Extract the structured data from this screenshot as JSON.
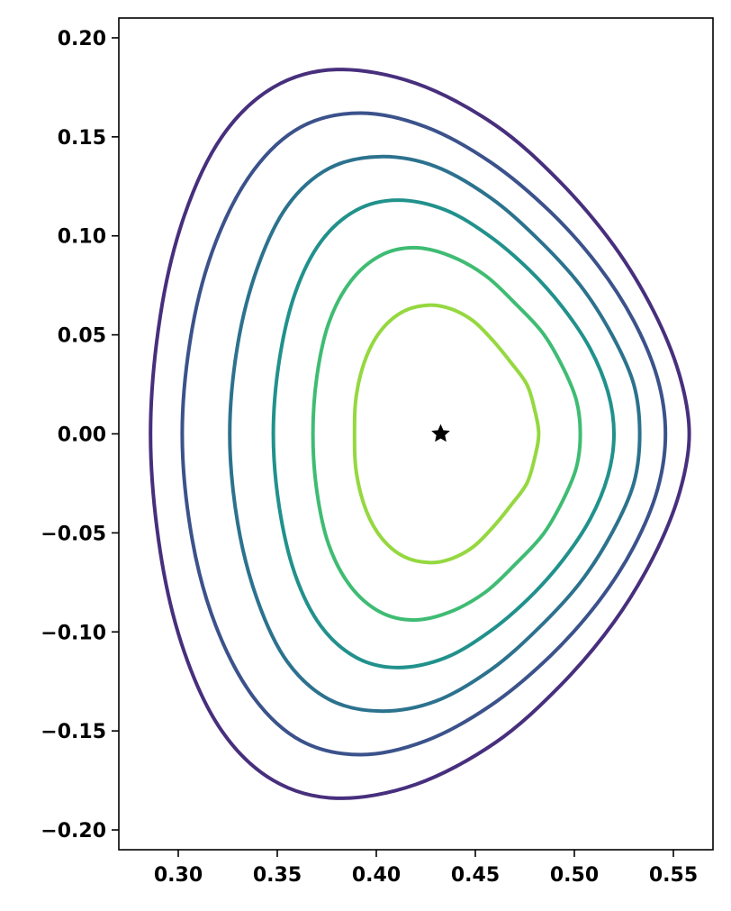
{
  "chart_data": {
    "type": "line",
    "title": "",
    "xlabel": "",
    "ylabel": "",
    "xlim": [
      0.27,
      0.57
    ],
    "ylim": [
      -0.21,
      0.21
    ],
    "grid": false,
    "xticks": [
      "0.30",
      "0.35",
      "0.40",
      "0.45",
      "0.50",
      "0.55"
    ],
    "yticks": [
      "0.20",
      "0.15",
      "0.10",
      "0.05",
      "0.00",
      "−0.05",
      "−0.10",
      "−0.15",
      "−0.20"
    ],
    "magnetic_axis": {
      "x": 0.4325,
      "y": 0.0,
      "marker": "star",
      "color": "#000000"
    },
    "series": [
      {
        "color": "#472f7d",
        "points": [
          [
            0.558,
            0.0
          ],
          [
            0.553,
            0.03
          ],
          [
            0.54,
            0.062
          ],
          [
            0.52,
            0.095
          ],
          [
            0.493,
            0.127
          ],
          [
            0.46,
            0.156
          ],
          [
            0.42,
            0.177
          ],
          [
            0.38,
            0.184
          ],
          [
            0.348,
            0.175
          ],
          [
            0.322,
            0.15
          ],
          [
            0.303,
            0.11
          ],
          [
            0.291,
            0.06
          ],
          [
            0.286,
            0.0
          ],
          [
            0.291,
            -0.06
          ],
          [
            0.303,
            -0.11
          ],
          [
            0.322,
            -0.15
          ],
          [
            0.348,
            -0.175
          ],
          [
            0.38,
            -0.184
          ],
          [
            0.42,
            -0.177
          ],
          [
            0.46,
            -0.156
          ],
          [
            0.493,
            -0.127
          ],
          [
            0.52,
            -0.095
          ],
          [
            0.54,
            -0.062
          ],
          [
            0.553,
            -0.03
          ]
        ]
      },
      {
        "color": "#3b528b",
        "points": [
          [
            0.546,
            0.0
          ],
          [
            0.542,
            0.028
          ],
          [
            0.53,
            0.057
          ],
          [
            0.512,
            0.085
          ],
          [
            0.488,
            0.112
          ],
          [
            0.458,
            0.137
          ],
          [
            0.425,
            0.155
          ],
          [
            0.392,
            0.162
          ],
          [
            0.362,
            0.155
          ],
          [
            0.338,
            0.133
          ],
          [
            0.319,
            0.097
          ],
          [
            0.307,
            0.053
          ],
          [
            0.302,
            0.0
          ],
          [
            0.307,
            -0.053
          ],
          [
            0.319,
            -0.097
          ],
          [
            0.338,
            -0.133
          ],
          [
            0.362,
            -0.155
          ],
          [
            0.392,
            -0.162
          ],
          [
            0.425,
            -0.155
          ],
          [
            0.458,
            -0.137
          ],
          [
            0.488,
            -0.112
          ],
          [
            0.512,
            -0.085
          ],
          [
            0.53,
            -0.057
          ],
          [
            0.542,
            -0.028
          ]
        ]
      },
      {
        "color": "#2c728e",
        "points": [
          [
            0.533,
            0.0
          ],
          [
            0.53,
            0.025
          ],
          [
            0.519,
            0.05
          ],
          [
            0.503,
            0.075
          ],
          [
            0.482,
            0.098
          ],
          [
            0.458,
            0.119
          ],
          [
            0.43,
            0.135
          ],
          [
            0.402,
            0.14
          ],
          [
            0.376,
            0.134
          ],
          [
            0.355,
            0.115
          ],
          [
            0.34,
            0.084
          ],
          [
            0.33,
            0.045
          ],
          [
            0.326,
            0.0
          ],
          [
            0.33,
            -0.045
          ],
          [
            0.34,
            -0.084
          ],
          [
            0.355,
            -0.115
          ],
          [
            0.376,
            -0.134
          ],
          [
            0.402,
            -0.14
          ],
          [
            0.43,
            -0.135
          ],
          [
            0.458,
            -0.119
          ],
          [
            0.482,
            -0.098
          ],
          [
            0.503,
            -0.075
          ],
          [
            0.519,
            -0.05
          ],
          [
            0.53,
            -0.025
          ]
        ]
      },
      {
        "color": "#21918c",
        "points": [
          [
            0.52,
            0.0
          ],
          [
            0.517,
            0.021
          ],
          [
            0.508,
            0.043
          ],
          [
            0.494,
            0.064
          ],
          [
            0.477,
            0.083
          ],
          [
            0.457,
            0.1
          ],
          [
            0.435,
            0.113
          ],
          [
            0.411,
            0.118
          ],
          [
            0.39,
            0.113
          ],
          [
            0.372,
            0.097
          ],
          [
            0.359,
            0.071
          ],
          [
            0.351,
            0.037
          ],
          [
            0.348,
            0.0
          ],
          [
            0.351,
            -0.037
          ],
          [
            0.359,
            -0.071
          ],
          [
            0.372,
            -0.097
          ],
          [
            0.39,
            -0.113
          ],
          [
            0.411,
            -0.118
          ],
          [
            0.435,
            -0.113
          ],
          [
            0.457,
            -0.1
          ],
          [
            0.477,
            -0.083
          ],
          [
            0.494,
            -0.064
          ],
          [
            0.508,
            -0.043
          ],
          [
            0.517,
            -0.021
          ]
        ]
      },
      {
        "color": "#3fbc73",
        "points": [
          [
            0.503,
            0.0
          ],
          [
            0.501,
            0.017
          ],
          [
            0.494,
            0.034
          ],
          [
            0.484,
            0.051
          ],
          [
            0.47,
            0.066
          ],
          [
            0.455,
            0.08
          ],
          [
            0.437,
            0.09
          ],
          [
            0.419,
            0.094
          ],
          [
            0.402,
            0.09
          ],
          [
            0.387,
            0.077
          ],
          [
            0.376,
            0.056
          ],
          [
            0.37,
            0.029
          ],
          [
            0.368,
            0.0
          ],
          [
            0.37,
            -0.029
          ],
          [
            0.376,
            -0.056
          ],
          [
            0.387,
            -0.077
          ],
          [
            0.402,
            -0.09
          ],
          [
            0.419,
            -0.094
          ],
          [
            0.437,
            -0.09
          ],
          [
            0.455,
            -0.08
          ],
          [
            0.47,
            -0.066
          ],
          [
            0.484,
            -0.051
          ],
          [
            0.494,
            -0.034
          ],
          [
            0.501,
            -0.017
          ]
        ]
      },
      {
        "color": "#95d840",
        "points": [
          [
            0.482,
            0.0
          ],
          [
            0.48,
            0.012
          ],
          [
            0.476,
            0.025
          ],
          [
            0.468,
            0.036
          ],
          [
            0.459,
            0.047
          ],
          [
            0.449,
            0.057
          ],
          [
            0.438,
            0.063
          ],
          [
            0.427,
            0.065
          ],
          [
            0.414,
            0.062
          ],
          [
            0.403,
            0.053
          ],
          [
            0.395,
            0.039
          ],
          [
            0.39,
            0.02
          ],
          [
            0.389,
            0.0
          ],
          [
            0.39,
            -0.02
          ],
          [
            0.395,
            -0.039
          ],
          [
            0.403,
            -0.053
          ],
          [
            0.414,
            -0.062
          ],
          [
            0.427,
            -0.065
          ],
          [
            0.438,
            -0.063
          ],
          [
            0.449,
            -0.057
          ],
          [
            0.459,
            -0.047
          ],
          [
            0.468,
            -0.036
          ],
          [
            0.476,
            -0.025
          ],
          [
            0.48,
            -0.012
          ]
        ]
      }
    ]
  }
}
